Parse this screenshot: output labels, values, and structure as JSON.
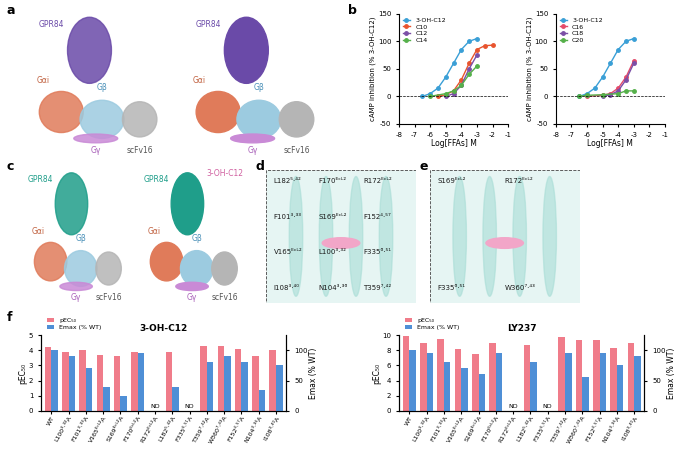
{
  "chart_data": [
    {
      "type": "line",
      "panel": "b",
      "xlabel": "Log[FFAs] M",
      "ylabel": "cAMP inhibition (% 3-OH-C12)",
      "xlim": [
        -8,
        -1
      ],
      "xticks": [
        -8,
        -7,
        -6,
        -5,
        -4,
        -3,
        -2,
        -1
      ],
      "ylim": [
        -50,
        150
      ],
      "yticks": [
        -50,
        0,
        50,
        100,
        150
      ],
      "marker": "o",
      "legend": "upper left",
      "series": [
        {
          "name": "3-OH-C12",
          "color": "#3a9fd6",
          "x": [
            -6.5,
            -6,
            -5.5,
            -5,
            -4.5,
            -4,
            -3.5,
            -3
          ],
          "values": [
            0,
            5,
            15,
            35,
            60,
            85,
            100,
            105
          ]
        },
        {
          "name": "C10",
          "color": "#e8542e",
          "x": [
            -5.5,
            -5,
            -4.5,
            -4,
            -3.5,
            -3,
            -2.5,
            -2
          ],
          "values": [
            0,
            3,
            10,
            30,
            60,
            85,
            92,
            93
          ]
        },
        {
          "name": "C12",
          "color": "#7b4fa6",
          "x": [
            -5,
            -4.5,
            -4,
            -3.5,
            -3
          ],
          "values": [
            0,
            5,
            20,
            50,
            75
          ]
        },
        {
          "name": "C14",
          "color": "#55b04a",
          "x": [
            -6,
            -5,
            -4.5,
            -4,
            -3.5,
            -3
          ],
          "values": [
            0,
            5,
            10,
            20,
            40,
            55
          ]
        }
      ]
    },
    {
      "type": "line",
      "panel": "b",
      "xlabel": "Log[FFAs] M",
      "ylabel": "cAMP inhibition (% 3-OH-C12)",
      "xlim": [
        -8,
        -1
      ],
      "xticks": [
        -8,
        -7,
        -6,
        -5,
        -4,
        -3,
        -2,
        -1
      ],
      "ylim": [
        -50,
        150
      ],
      "yticks": [
        -50,
        0,
        50,
        100,
        150
      ],
      "marker": "o",
      "legend": "upper left",
      "series": [
        {
          "name": "3-OH-C12",
          "color": "#3a9fd6",
          "x": [
            -6.5,
            -6,
            -5.5,
            -5,
            -4.5,
            -4,
            -3.5,
            -3
          ],
          "values": [
            0,
            5,
            15,
            35,
            60,
            85,
            100,
            105
          ]
        },
        {
          "name": "C16",
          "color": "#e34b6a",
          "x": [
            -6,
            -5,
            -4.5,
            -4,
            -3.5,
            -3
          ],
          "values": [
            0,
            2,
            5,
            15,
            35,
            65
          ]
        },
        {
          "name": "C18",
          "color": "#7b4fa6",
          "x": [
            -5,
            -4.5,
            -4,
            -3.5,
            -3
          ],
          "values": [
            0,
            3,
            10,
            30,
            60
          ]
        },
        {
          "name": "C20",
          "color": "#55b04a",
          "x": [
            -6.5,
            -6,
            -5,
            -4,
            -3.5,
            -3
          ],
          "values": [
            0,
            2,
            3,
            5,
            10,
            10
          ]
        }
      ]
    },
    {
      "type": "bar",
      "panel": "f",
      "title": "3-OH-C12",
      "ylabel": "pEC₅₀",
      "y2label": "Emax (% WT)",
      "nd_label": "ND",
      "legend": "upper left",
      "categories": [
        "WT",
        "L100³·³²A",
        "F101³·³³A",
        "V165ᴱᶜᴸ²A",
        "S169ᴱᶜᴸ²A",
        "F170ᴱᶜᴸ²A",
        "R172ᴱᶜᴸ²A",
        "L182⁵·⁴²A",
        "F335⁶·⁵¹A",
        "T359⁷·⁴²A",
        "W360⁷·⁴³A",
        "F152⁴·⁵⁷A",
        "N104³·³⁶A",
        "I108³·⁴⁰A"
      ],
      "ylim": [
        0,
        5
      ],
      "yticks": [
        0,
        1,
        2,
        3,
        4,
        5
      ],
      "y2lim": [
        0,
        125
      ],
      "y2ticks": [
        0,
        50,
        100
      ],
      "series": [
        {
          "name": "pEC₅₀",
          "color": "#f07c8a",
          "values": [
            4.2,
            3.9,
            4.0,
            3.7,
            3.6,
            3.9,
            null,
            3.9,
            null,
            4.3,
            4.3,
            4.1,
            3.6,
            4.0
          ]
        },
        {
          "name": "Emax (% WT)",
          "color": "#4f8fd6",
          "axis": "y2",
          "values": [
            100,
            90,
            70,
            40,
            25,
            95,
            null,
            40,
            null,
            80,
            90,
            80,
            35,
            75
          ]
        }
      ]
    },
    {
      "type": "bar",
      "panel": "f",
      "title": "LY237",
      "ylabel": "pEC₅₀",
      "y2label": "Emax (% WT)",
      "nd_label": "ND",
      "legend": "upper left",
      "categories": [
        "WT",
        "L100³·³²A",
        "F101³·³³A",
        "V165ᴱᶜᴸ²A",
        "S169ᴱᶜᴸ²A",
        "F170ᴱᶜᴸ²A",
        "R172ᴱᶜᴸ²A",
        "L182⁵·⁴²A",
        "F335⁶·⁵¹A",
        "T359⁷·⁴²A",
        "W360⁷·⁴³A",
        "F152⁴·⁵⁷A",
        "N104³·³⁶A",
        "I108³·⁴⁰A"
      ],
      "ylim": [
        0,
        10
      ],
      "yticks": [
        0,
        2,
        4,
        6,
        8,
        10
      ],
      "y2lim": [
        0,
        125
      ],
      "y2ticks": [
        0,
        50,
        100
      ],
      "series": [
        {
          "name": "pEC₅₀",
          "color": "#f07c8a",
          "values": [
            9.9,
            9.0,
            9.5,
            8.1,
            7.5,
            9.0,
            null,
            8.7,
            null,
            9.7,
            9.3,
            9.3,
            8.3,
            8.9
          ]
        },
        {
          "name": "Emax (% WT)",
          "color": "#4f8fd6",
          "axis": "y2",
          "values": [
            100,
            95,
            80,
            70,
            60,
            95,
            null,
            80,
            null,
            95,
            55,
            95,
            75,
            90
          ]
        }
      ]
    }
  ],
  "structure_panels": {
    "a": {
      "letter": "a",
      "receptor": "GPR84",
      "galpha": "Gαi",
      "gbeta": "Gβ",
      "ggamma": "Gγ",
      "scfv": "scFv16"
    },
    "c": {
      "letter": "c",
      "receptor": "GPR84",
      "galpha": "Gαi",
      "gbeta": "Gβ",
      "ggamma": "Gγ",
      "scfv": "scFv16",
      "ligand": "3-OH-C12"
    },
    "d": {
      "letter": "d",
      "residues": [
        "L182⁵·⁴²",
        "F170ᴱᶜᴸ²",
        "R172ᴱᶜᴸ²",
        "F101³·³³",
        "S169ᴱᶜᴸ²",
        "F152⁴·⁵⁷",
        "V165ᴱᶜᴸ²",
        "L100³·³²",
        "F335⁶·⁵¹",
        "I108³·⁴⁰",
        "N104³·³⁶",
        "T359⁷·⁴²"
      ]
    },
    "e": {
      "letter": "e",
      "residues": [
        "S169ᴱᶜᴸ²",
        "R172ᴱᶜᴸ²",
        "F335⁶·⁵¹",
        "W360⁷·⁴³"
      ]
    }
  },
  "chart_panel_letters": [
    "b",
    "f"
  ]
}
